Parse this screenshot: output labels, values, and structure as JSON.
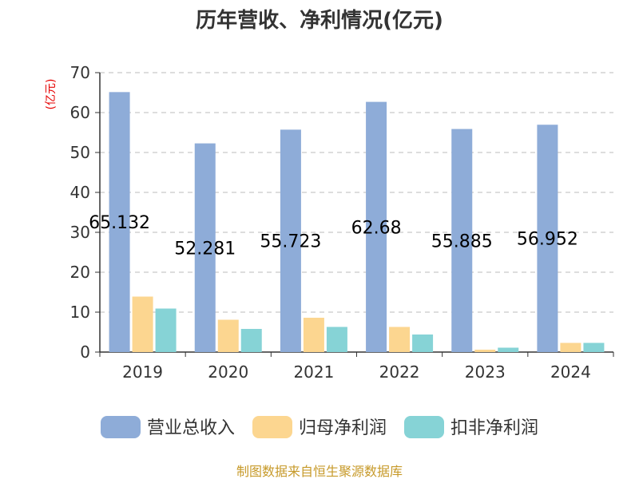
{
  "chart_data": {
    "type": "bar",
    "title": "历年营收、净利情况(亿元)",
    "ylabel": "(亿元)",
    "ylim": [
      0,
      70
    ],
    "yticks": [
      0,
      10,
      20,
      30,
      40,
      50,
      60,
      70
    ],
    "categories": [
      "2019",
      "2020",
      "2021",
      "2022",
      "2023",
      "2024"
    ],
    "series": [
      {
        "name": "营业总收入",
        "color": "#8eacd8",
        "values": [
          65.132,
          52.281,
          55.723,
          62.68,
          55.885,
          56.952
        ],
        "labels": [
          "65.132",
          "52.281",
          "55.723",
          "62.68",
          "55.885",
          "56.952"
        ]
      },
      {
        "name": "归母净利润",
        "color": "#fcd690",
        "values": [
          13.9,
          8.1,
          8.6,
          6.3,
          0.6,
          2.3
        ]
      },
      {
        "name": "扣非净利润",
        "color": "#86d3d6",
        "values": [
          10.9,
          5.8,
          6.3,
          4.4,
          1.1,
          2.3
        ]
      }
    ],
    "grid": true,
    "legend_position": "bottom"
  },
  "source": "制图数据来自恒生聚源数据库"
}
